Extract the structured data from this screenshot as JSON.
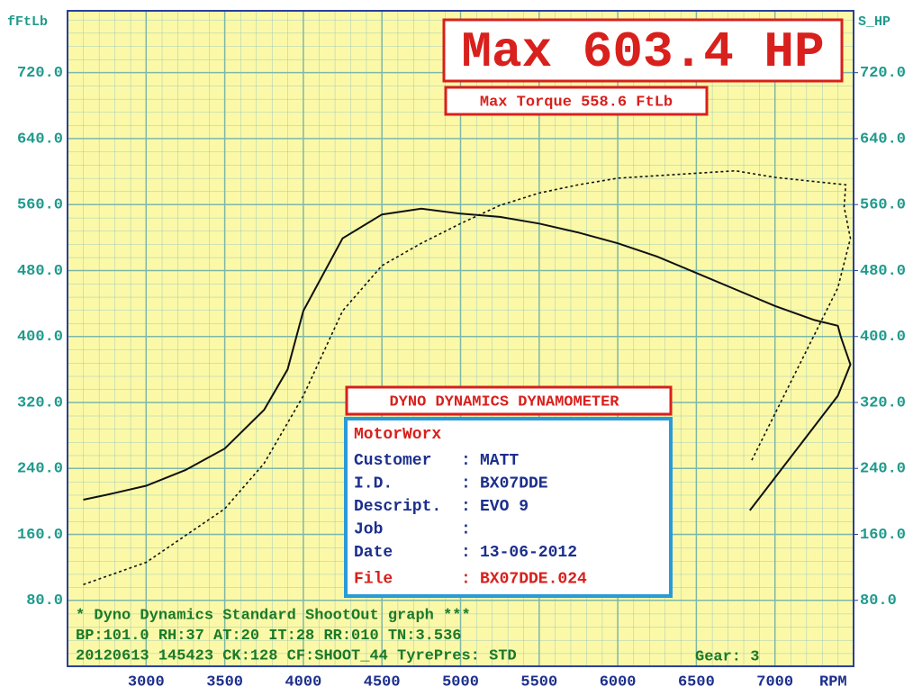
{
  "chart_data": {
    "type": "line",
    "y_label": "fFtLb",
    "y2_label": "S_HP",
    "x_label": "RPM",
    "xlim": [
      2500,
      7500
    ],
    "xticks": [
      3000,
      3500,
      4000,
      4500,
      5000,
      5500,
      6000,
      6500,
      7000
    ],
    "ylim": [
      0,
      795
    ],
    "yticks": [
      {
        "value": 80,
        "label": "80.0"
      },
      {
        "value": 160,
        "label": "160.0"
      },
      {
        "value": 240,
        "label": "240.0"
      },
      {
        "value": 320,
        "label": "320.0"
      },
      {
        "value": 400,
        "label": "400.0"
      },
      {
        "value": 480,
        "label": "480.0"
      },
      {
        "value": 560,
        "label": "560.0"
      },
      {
        "value": 640,
        "label": "640.0"
      },
      {
        "value": 720,
        "label": "720.0"
      }
    ],
    "y2lim": [
      0,
      795
    ],
    "y2ticks": [
      {
        "value": 80,
        "label": "80.0"
      },
      {
        "value": 160,
        "label": "160.0"
      },
      {
        "value": 240,
        "label": "240.0"
      },
      {
        "value": 320,
        "label": "320.0"
      },
      {
        "value": 400,
        "label": "400.0"
      },
      {
        "value": 480,
        "label": "480.0"
      },
      {
        "value": 560,
        "label": "560.0"
      },
      {
        "value": 640,
        "label": "640.0"
      },
      {
        "value": 720,
        "label": "720.0"
      }
    ],
    "grid": true,
    "series": [
      {
        "color": "#111111",
        "style": "solid",
        "x": [
          2600,
          2750,
          3000,
          3250,
          3500,
          3750,
          3900,
          4000,
          4250,
          4500,
          4750,
          5000,
          5250,
          5500,
          5750,
          6000,
          6250,
          6500,
          6750,
          7000,
          7250,
          7400,
          7420,
          7480,
          7400,
          6840
        ],
        "values": [
          202,
          208,
          219,
          238,
          264,
          311,
          360,
          431,
          519,
          548,
          555,
          549,
          545,
          537,
          526,
          513,
          497,
          477,
          457,
          437,
          420,
          413,
          399,
          366,
          328,
          189
        ]
      },
      {
        "color": "#111111",
        "style": "dashed",
        "axis": "y2",
        "x": [
          2600,
          3000,
          3500,
          3750,
          4000,
          4250,
          4500,
          4750,
          5000,
          5250,
          5500,
          5750,
          6000,
          6500,
          6750,
          7000,
          7250,
          7450,
          7440,
          7480,
          7400,
          6850
        ],
        "values": [
          99,
          126,
          191,
          246,
          328,
          431,
          486,
          513,
          537,
          559,
          574,
          584,
          592,
          598,
          601,
          593,
          588,
          584,
          557,
          519,
          459,
          249
        ]
      }
    ],
    "max_hp": "Max 603.4 HP",
    "max_torque": "Max Torque 558.6 FtLb",
    "info_title": "DYNO DYNAMICS DYNAMOMETER",
    "info_heading": "MotorWorx",
    "info_rows": [
      {
        "label": "Customer",
        "sep": ":",
        "value": "MATT",
        "color": "#1c2f8c"
      },
      {
        "label": "I.D.",
        "sep": ":",
        "value": "BX07DDE",
        "color": "#1c2f8c"
      },
      {
        "label": "Descript.",
        "sep": ":",
        "value": "EVO 9",
        "color": "#1c2f8c"
      },
      {
        "label": "Job",
        "sep": ":",
        "color": "#1c2f8c"
      },
      {
        "label": "Date",
        "sep": ":",
        "value": "13-06-2012",
        "color": "#1c2f8c"
      },
      {
        "label": "File",
        "sep": ":",
        "value": "BX07DDE.024",
        "color": "#d8201c"
      }
    ],
    "footer": [
      "* Dyno Dynamics Standard ShootOut graph ***",
      "BP:101.0 RH:37 AT:20 IT:28 RR:010 TN:3.536",
      "20120613 145423 CK:128 CF:SHOOT_44 TyrePres: STD"
    ],
    "gear": "Gear: 3"
  }
}
